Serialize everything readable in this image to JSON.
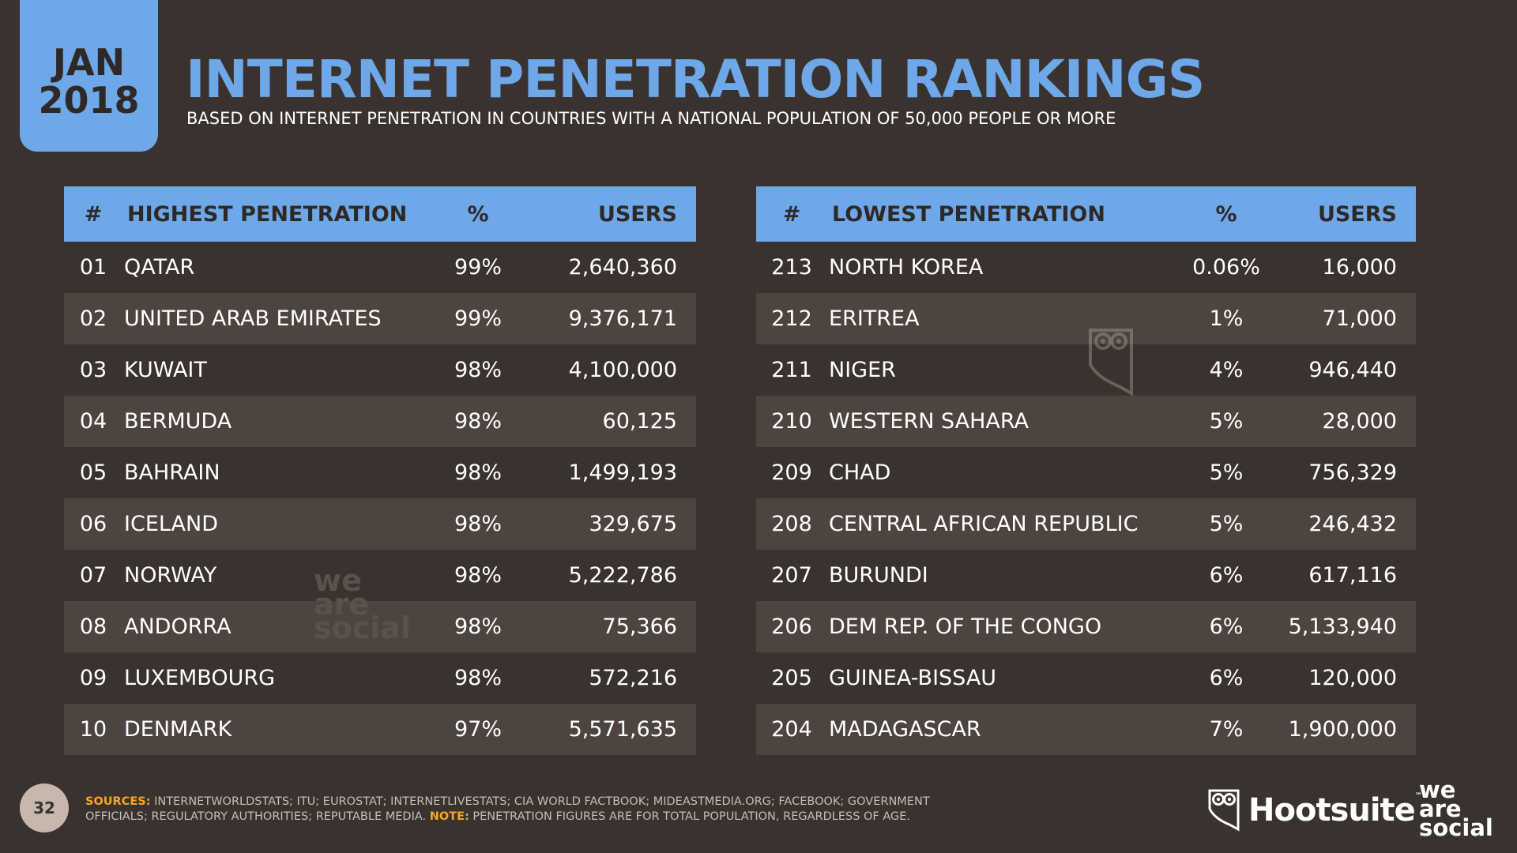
{
  "badge": {
    "month": "JAN",
    "year": "2018"
  },
  "title": "INTERNET PENETRATION RANKINGS",
  "subtitle": "BASED ON INTERNET PENETRATION IN COUNTRIES WITH A NATIONAL POPULATION OF 50,000 PEOPLE OR MORE",
  "highest": {
    "headers": {
      "num": "#",
      "name": "HIGHEST PENETRATION",
      "pct": "%",
      "users": "USERS"
    },
    "rows": [
      {
        "num": "01",
        "name": "QATAR",
        "pct": "99%",
        "users": "2,640,360"
      },
      {
        "num": "02",
        "name": "UNITED ARAB EMIRATES",
        "pct": "99%",
        "users": "9,376,171"
      },
      {
        "num": "03",
        "name": "KUWAIT",
        "pct": "98%",
        "users": "4,100,000"
      },
      {
        "num": "04",
        "name": "BERMUDA",
        "pct": "98%",
        "users": "60,125"
      },
      {
        "num": "05",
        "name": "BAHRAIN",
        "pct": "98%",
        "users": "1,499,193"
      },
      {
        "num": "06",
        "name": "ICELAND",
        "pct": "98%",
        "users": "329,675"
      },
      {
        "num": "07",
        "name": "NORWAY",
        "pct": "98%",
        "users": "5,222,786"
      },
      {
        "num": "08",
        "name": "ANDORRA",
        "pct": "98%",
        "users": "75,366"
      },
      {
        "num": "09",
        "name": "LUXEMBOURG",
        "pct": "98%",
        "users": "572,216"
      },
      {
        "num": "10",
        "name": "DENMARK",
        "pct": "97%",
        "users": "5,571,635"
      }
    ]
  },
  "lowest": {
    "headers": {
      "num": "#",
      "name": "LOWEST PENETRATION",
      "pct": "%",
      "users": "USERS"
    },
    "rows": [
      {
        "num": "213",
        "name": "NORTH KOREA",
        "pct": "0.06%",
        "users": "16,000"
      },
      {
        "num": "212",
        "name": "ERITREA",
        "pct": "1%",
        "users": "71,000"
      },
      {
        "num": "211",
        "name": "NIGER",
        "pct": "4%",
        "users": "946,440"
      },
      {
        "num": "210",
        "name": "WESTERN SAHARA",
        "pct": "5%",
        "users": "28,000"
      },
      {
        "num": "209",
        "name": "CHAD",
        "pct": "5%",
        "users": "756,329"
      },
      {
        "num": "208",
        "name": "CENTRAL AFRICAN REPUBLIC",
        "pct": "5%",
        "users": "246,432"
      },
      {
        "num": "207",
        "name": "BURUNDI",
        "pct": "6%",
        "users": "617,116"
      },
      {
        "num": "206",
        "name": "DEM REP. OF THE CONGO",
        "pct": "6%",
        "users": "5,133,940"
      },
      {
        "num": "205",
        "name": "GUINEA-BISSAU",
        "pct": "6%",
        "users": "120,000"
      },
      {
        "num": "204",
        "name": "MADAGASCAR",
        "pct": "7%",
        "users": "1,900,000"
      }
    ]
  },
  "watermark": {
    "line1": "we",
    "line2": "are",
    "line3": "social"
  },
  "footer": {
    "page_number": "32",
    "sources_label": "SOURCES:",
    "sources_text": "INTERNETWORLDSTATS; ITU; EUROSTAT; INTERNETLIVESTATS; CIA WORLD FACTBOOK; MIDEASTMEDIA.ORG; FACEBOOK; GOVERNMENT OFFICIALS; REGULATORY AUTHORITIES; REPUTABLE MEDIA.",
    "note_label": "NOTE:",
    "note_text": "PENETRATION FIGURES ARE FOR TOTAL POPULATION, REGARDLESS OF AGE.",
    "hootsuite": "Hootsuite",
    "hootsuite_tm": "™",
    "was_line1": "we",
    "was_line2": "are",
    "was_line3": "social"
  },
  "colors": {
    "background": "#3a322e",
    "accent": "#6ea8e8",
    "row_alt": "#4d4440",
    "note_label": "#f5a623"
  },
  "icons": [
    "hootsuite-owl-icon"
  ]
}
